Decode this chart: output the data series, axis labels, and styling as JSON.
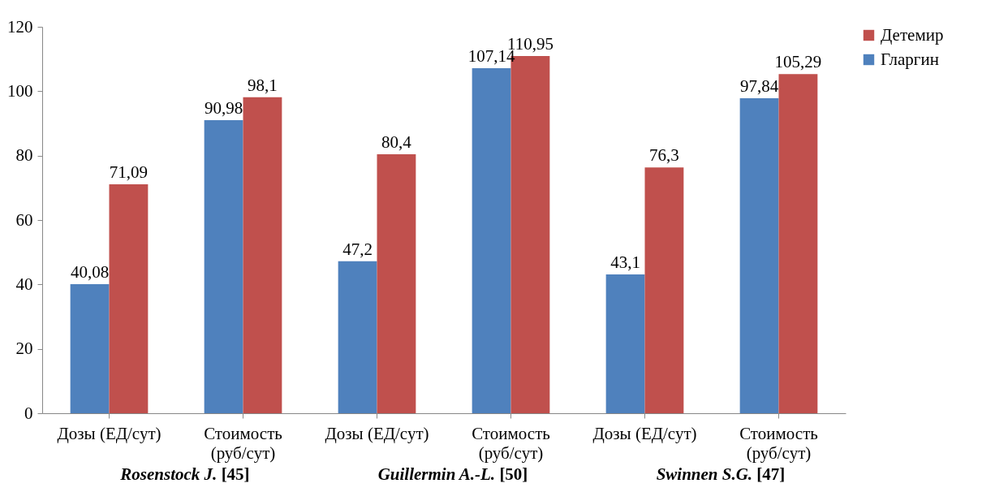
{
  "chart_data": {
    "type": "bar",
    "categories": [
      "Дозы (ЕД/сут)",
      "Стоимость\n(руб/сут)",
      "Дозы (ЕД/сут)",
      "Стоимость\n(руб/сут)",
      "Дозы (ЕД/сут)",
      "Стоимость\n(руб/сут)"
    ],
    "series": [
      {
        "name": "Гларгин",
        "color": "#4f81bd",
        "values": [
          40.08,
          90.98,
          47.2,
          107.14,
          43.1,
          97.84
        ],
        "value_labels": [
          "40,08",
          "90,98",
          "47,2",
          "107,14",
          "43,1",
          "97,84"
        ]
      },
      {
        "name": "Детемир",
        "color": "#c0504d",
        "values": [
          71.09,
          98.1,
          80.4,
          110.95,
          76.3,
          105.29
        ],
        "value_labels": [
          "71,09",
          "98,1",
          "80,4",
          "110,95",
          "76,3",
          "105,29"
        ]
      }
    ],
    "ylim": [
      0,
      120
    ],
    "yticks": [
      0,
      20,
      40,
      60,
      80,
      100,
      120
    ],
    "grid": false,
    "legend": "right",
    "annotations": [
      "Rosenstock J. [45]",
      "Guillermin A.-L. [50]",
      "Swinnen S.G. [47]"
    ]
  }
}
